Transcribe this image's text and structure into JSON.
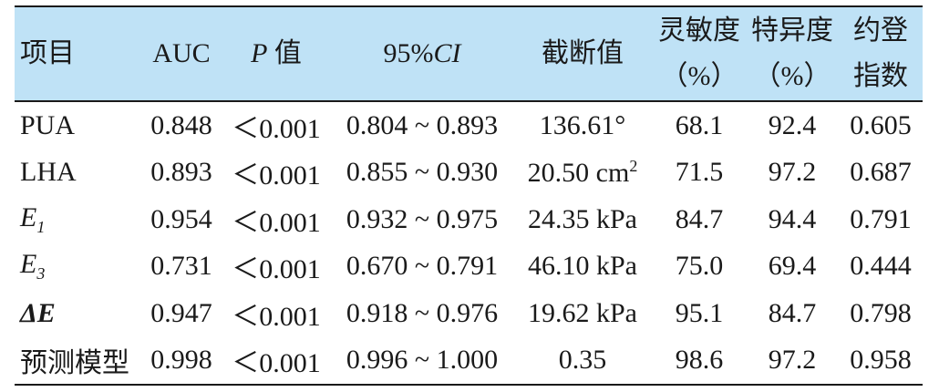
{
  "table": {
    "headers": {
      "item": "项目",
      "auc": "AUC",
      "p_prefix": "P",
      "p_suffix": "值",
      "ci_prefix": "95%",
      "ci_suffix": "CI",
      "cutoff": "截断值",
      "sensitivity_line1": "灵敏度",
      "sensitivity_line2": "（%）",
      "specificity_line1": "特异度",
      "specificity_line2": "（%）",
      "youden_line1": "约登",
      "youden_line2": "指数"
    },
    "rows": [
      {
        "item": "PUA",
        "item_main": "PUA",
        "item_sub": "",
        "auc": "0.848",
        "p": "＜0.001",
        "ci": "0.804 ~ 0.893",
        "cutoff": "136.61°",
        "cutoff_sup": "",
        "sensitivity": "68.1",
        "specificity": "92.4",
        "youden": "0.605"
      },
      {
        "item": "LHA",
        "item_main": "LHA",
        "item_sub": "",
        "auc": "0.893",
        "p": "＜0.001",
        "ci": "0.855 ~ 0.930",
        "cutoff": "20.50 cm",
        "cutoff_sup": "2",
        "sensitivity": "71.5",
        "specificity": "97.2",
        "youden": "0.687"
      },
      {
        "item": "E1",
        "item_main": "E",
        "item_sub": "1",
        "auc": "0.954",
        "p": "＜0.001",
        "ci": "0.932 ~ 0.975",
        "cutoff": "24.35 kPa",
        "cutoff_sup": "",
        "sensitivity": "84.7",
        "specificity": "94.4",
        "youden": "0.791"
      },
      {
        "item": "E3",
        "item_main": "E",
        "item_sub": "3",
        "auc": "0.731",
        "p": "＜0.001",
        "ci": "0.670 ~ 0.791",
        "cutoff": "46.10 kPa",
        "cutoff_sup": "",
        "sensitivity": "75.0",
        "specificity": "69.4",
        "youden": "0.444"
      },
      {
        "item": "ΔE",
        "item_main": "ΔE",
        "item_sub": "",
        "auc": "0.947",
        "p": "＜0.001",
        "ci": "0.918 ~ 0.976",
        "cutoff": "19.62 kPa",
        "cutoff_sup": "",
        "sensitivity": "95.1",
        "specificity": "84.7",
        "youden": "0.798"
      },
      {
        "item": "预测模型",
        "item_main": "预测模型",
        "item_sub": "",
        "auc": "0.998",
        "p": "＜0.001",
        "ci": "0.996 ~ 1.000",
        "cutoff": "0.35",
        "cutoff_sup": "",
        "sensitivity": "98.6",
        "specificity": "97.2",
        "youden": "0.958"
      }
    ]
  }
}
